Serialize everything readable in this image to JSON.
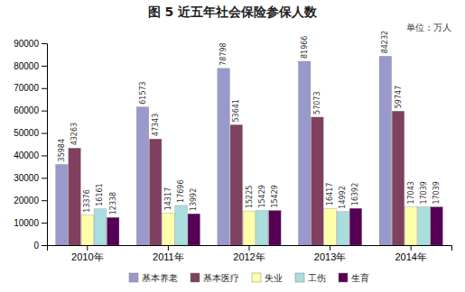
{
  "chart_data": {
    "type": "bar",
    "title": "图 5   近五年社会保险参保人数",
    "annotations": [
      "单位：万人"
    ],
    "categories": [
      "2010年",
      "2011年",
      "2012年",
      "2013年",
      "2014年"
    ],
    "series": [
      {
        "name": "基本养老",
        "color": "#9999cc",
        "values": [
          35984,
          61573,
          78798,
          81966,
          84232
        ]
      },
      {
        "name": "基本医疗",
        "color": "#804060",
        "values": [
          43263,
          47343,
          53641,
          57073,
          59747
        ]
      },
      {
        "name": "失业",
        "color": "#ffffaa",
        "values": [
          13376,
          14317,
          15225,
          16417,
          17043
        ]
      },
      {
        "name": "工伤",
        "color": "#aadddd",
        "values": [
          16161,
          17696,
          15429,
          14992,
          17039
        ]
      },
      {
        "name": "生育",
        "color": "#550055",
        "values": [
          12338,
          13992,
          15429,
          16392,
          17039
        ]
      }
    ],
    "ylim": [
      0,
      90000
    ],
    "yticks": [
      0,
      10000,
      20000,
      30000,
      40000,
      50000,
      60000,
      70000,
      80000,
      90000
    ],
    "grid": false,
    "legend": "bottom",
    "data_labels": true
  }
}
